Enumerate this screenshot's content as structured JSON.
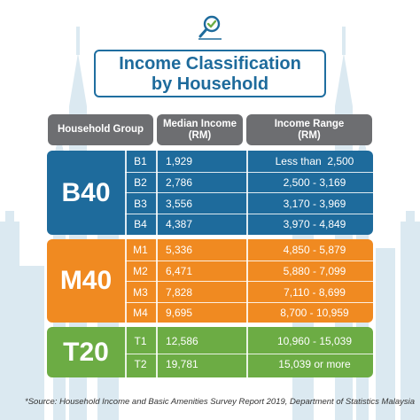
{
  "title": {
    "line1": "Income Classification",
    "line2": "by Household"
  },
  "headers": {
    "group": "Household Group",
    "median_line1": "Median Income",
    "median_line2": "(RM)",
    "range_line1": "Income Range",
    "range_line2": "(RM)"
  },
  "groups": [
    {
      "name": "B40",
      "color": "#1e6b9c",
      "rows": [
        {
          "code": "B1",
          "median": "1,929",
          "range": "Less than  2,500"
        },
        {
          "code": "B2",
          "median": "2,786",
          "range": "2,500 - 3,169"
        },
        {
          "code": "B3",
          "median": "3,556",
          "range": "3,170 - 3,969"
        },
        {
          "code": "B4",
          "median": "4,387",
          "range": "3,970 - 4,849"
        }
      ]
    },
    {
      "name": "M40",
      "color": "#f08a21",
      "rows": [
        {
          "code": "M1",
          "median": "5,336",
          "range": "4,850 - 5,879"
        },
        {
          "code": "M2",
          "median": "6,471",
          "range": "5,880 - 7,099"
        },
        {
          "code": "M3",
          "median": "7,828",
          "range": "7,110 - 8,699"
        },
        {
          "code": "M4",
          "median": "9,695",
          "range": "8,700 - 10,959"
        }
      ]
    },
    {
      "name": "T20",
      "color": "#6cac44",
      "rows": [
        {
          "code": "T1",
          "median": "12,586",
          "range": "10,960 - 15,039"
        },
        {
          "code": "T2",
          "median": "19,781",
          "range": "15,039 or more"
        }
      ]
    }
  ],
  "source": "*Source:  Household Income and Basic Amenities Survey Report 2019, Department of Statistics Malaysia",
  "icons": {
    "logo": "magnifier-check-icon",
    "background": "city-skyline-icon"
  }
}
